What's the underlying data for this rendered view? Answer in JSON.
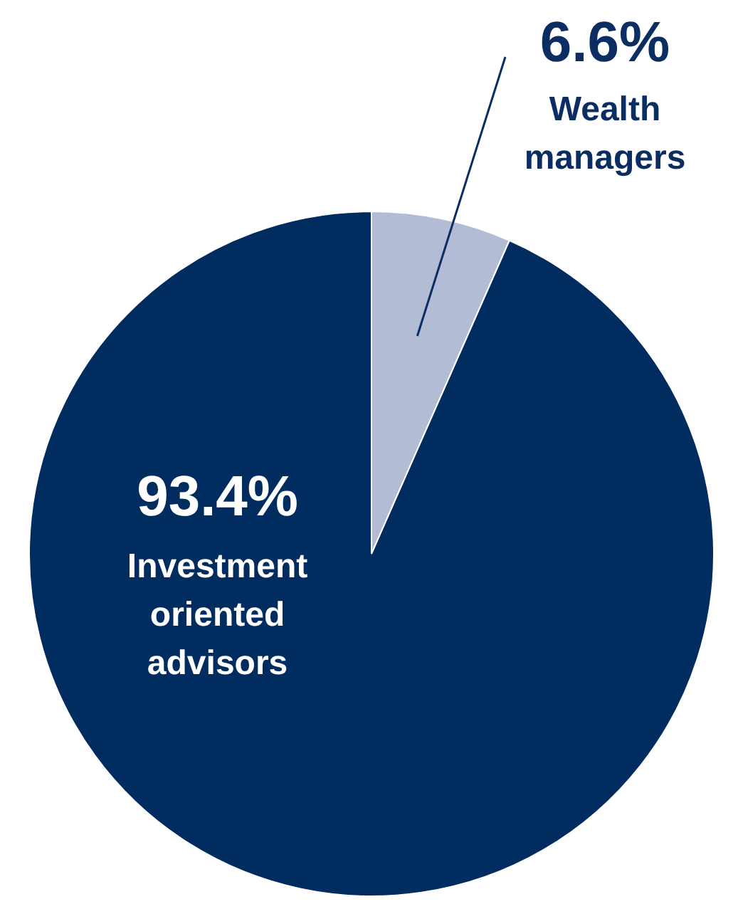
{
  "chart_data": {
    "type": "pie",
    "categories": [
      "Wealth managers",
      "Investment oriented advisors"
    ],
    "values": [
      6.6,
      93.4
    ],
    "colors": [
      "#b3bcd5",
      "#002c5f"
    ],
    "value_labels": [
      "6.6%",
      "93.4%"
    ],
    "legend": false
  }
}
